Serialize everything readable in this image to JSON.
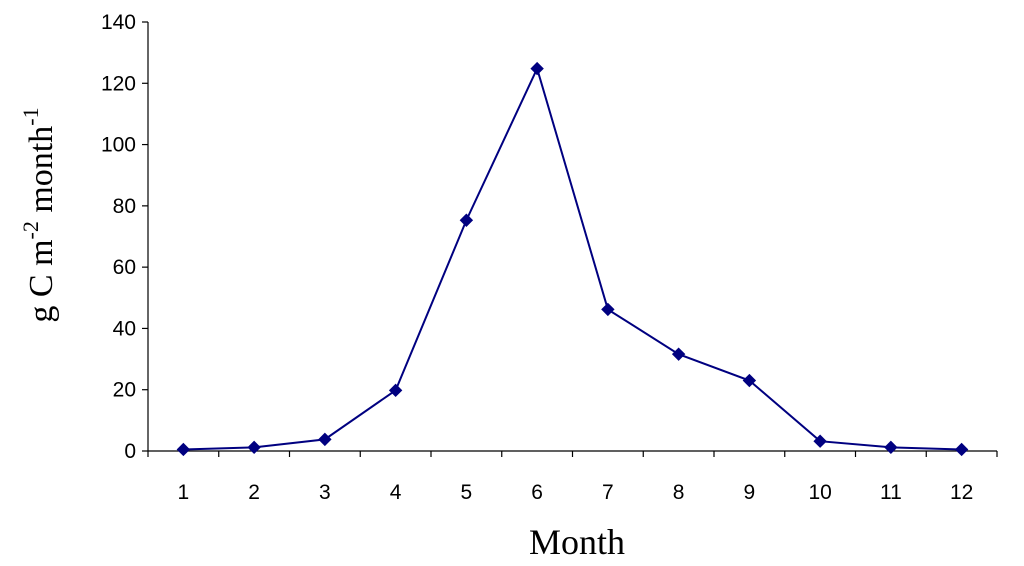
{
  "chart_data": {
    "type": "line",
    "title": "",
    "xlabel": "Month",
    "ylabel": {
      "parts": [
        "g C m",
        "-2",
        " month",
        "-1"
      ]
    },
    "x": [
      1,
      2,
      3,
      4,
      5,
      6,
      7,
      8,
      9,
      10,
      11,
      12
    ],
    "series": [
      {
        "values": [
          0.5,
          1.2,
          3.8,
          19.8,
          75.3,
          124.8,
          46.2,
          31.6,
          23.0,
          3.2,
          1.2,
          0.5
        ]
      }
    ],
    "ylim": [
      0,
      140
    ],
    "yticks": [
      0,
      20,
      40,
      60,
      80,
      100,
      120,
      140
    ],
    "grid": false,
    "legend": "none",
    "line_color": "#000080",
    "marker": "diamond"
  }
}
